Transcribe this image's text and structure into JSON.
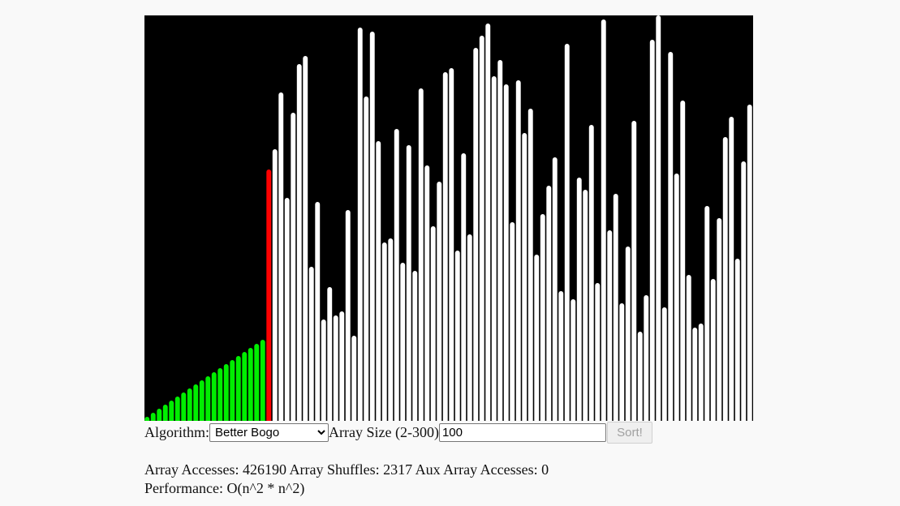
{
  "controls": {
    "algorithm_label": "Algorithm:",
    "algorithm_selected": "Better Bogo",
    "array_size_label": "Array Size (2-300)",
    "array_size_value": "100",
    "sort_button": "Sort!"
  },
  "stats": {
    "array_accesses_label": "Array Accesses:",
    "array_accesses": "426190",
    "array_shuffles_label": "Array Shuffles:",
    "array_shuffles": "2317",
    "aux_accesses_label": "Aux Array Accesses:",
    "aux_accesses": "0",
    "performance_label": "Performance:",
    "performance": "O(n^2 * n^2)"
  },
  "colors": {
    "background": "#000000",
    "sorted": "#00ee00",
    "current": "#ff0000",
    "unsorted": "#ffffff"
  },
  "visualizer": {
    "max_value": 100,
    "sorted_count": 20,
    "current_index": 20,
    "values": [
      1,
      2,
      3,
      4,
      5,
      6,
      7,
      8,
      9,
      10,
      11,
      12,
      13,
      14,
      15,
      16,
      17,
      18,
      19,
      20,
      62,
      67,
      81,
      55,
      76,
      88,
      90,
      38,
      54,
      25,
      33,
      26,
      27,
      52,
      21,
      97,
      80,
      96,
      69,
      44,
      45,
      72,
      39,
      68,
      37,
      82,
      63,
      48,
      59,
      86,
      87,
      42,
      66,
      46,
      92,
      95,
      98,
      85,
      89,
      83,
      49,
      84,
      71,
      77,
      41,
      51,
      58,
      65,
      32,
      93,
      30,
      60,
      57,
      73,
      34,
      99,
      47,
      56,
      29,
      43,
      74,
      22,
      31,
      94,
      100,
      28,
      91,
      61,
      79,
      36,
      23,
      24,
      53,
      35,
      50,
      70,
      75,
      40,
      64,
      78
    ]
  }
}
